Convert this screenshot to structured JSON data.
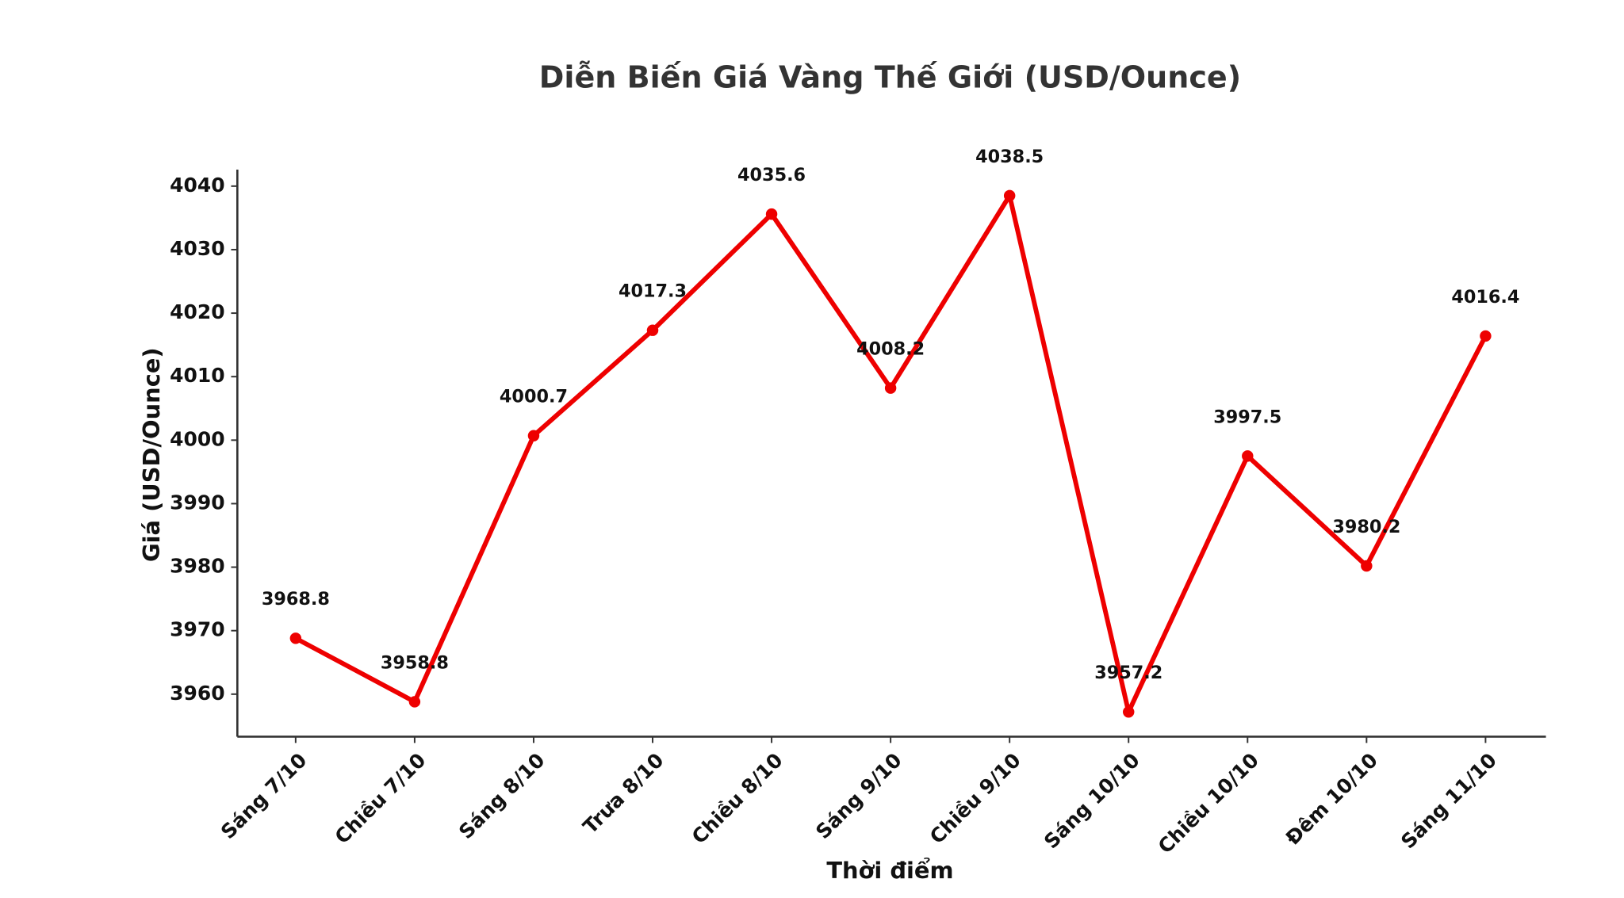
{
  "chart_data": {
    "type": "line",
    "title": "Diễn Biến Giá Vàng Thế Giới (USD/Ounce)",
    "x_label": "Thời điểm",
    "y_label": "Giá (USD/Ounce)",
    "categories": [
      "Sáng 7/10",
      "Chiều 7/10",
      "Sáng 8/10",
      "Trưa 8/10",
      "Chiều 8/10",
      "Sáng 9/10",
      "Chiều 9/10",
      "Sáng 10/10",
      "Chiều 10/10",
      "Đêm 10/10",
      "Sáng 11/10"
    ],
    "series": [
      {
        "name": "Giá vàng",
        "color": "#ee0000",
        "values": [
          3968.8,
          3958.8,
          4000.7,
          4017.3,
          4035.6,
          4008.2,
          4038.5,
          3957.2,
          3997.5,
          3980.2,
          4016.4
        ]
      }
    ],
    "ylim": [
      3953.3,
      4042.6
    ],
    "yticks": [
      3960,
      3970,
      3980,
      3990,
      4000,
      4010,
      4020,
      4030,
      4040
    ],
    "grid": false
  }
}
